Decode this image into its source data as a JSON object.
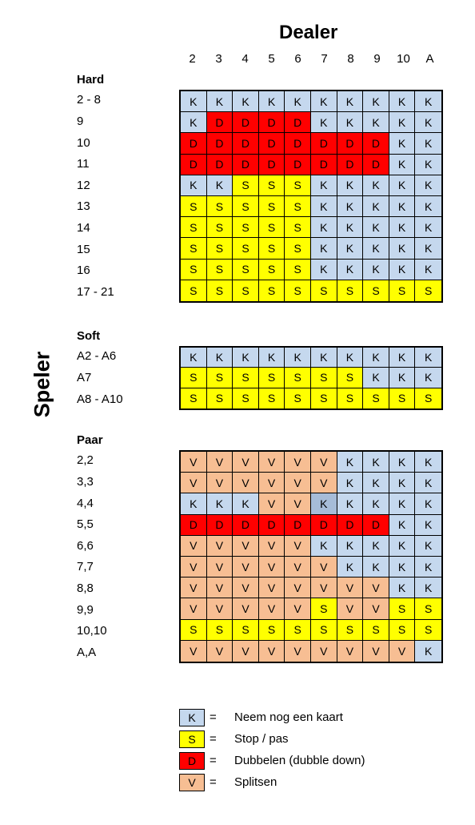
{
  "dealer": {
    "title": "Dealer",
    "columns": [
      "2",
      "3",
      "4",
      "5",
      "6",
      "7",
      "8",
      "9",
      "10",
      "A"
    ]
  },
  "player_label": "Speler",
  "colors": {
    "K": "#c5d8ee",
    "S": "#ffff00",
    "D": "#ff0000",
    "V": "#f7be93",
    "K_dark": "#a6bcd8"
  },
  "sections": [
    {
      "title": "Hard",
      "rows": [
        {
          "label": "2 - 8",
          "cells": [
            "K",
            "K",
            "K",
            "K",
            "K",
            "K",
            "K",
            "K",
            "K",
            "K"
          ]
        },
        {
          "label": "9",
          "cells": [
            "K",
            "D",
            "D",
            "D",
            "D",
            "K",
            "K",
            "K",
            "K",
            "K"
          ]
        },
        {
          "label": "10",
          "cells": [
            "D",
            "D",
            "D",
            "D",
            "D",
            "D",
            "D",
            "D",
            "K",
            "K"
          ]
        },
        {
          "label": "11",
          "cells": [
            "D",
            "D",
            "D",
            "D",
            "D",
            "D",
            "D",
            "D",
            "K",
            "K"
          ]
        },
        {
          "label": "12",
          "cells": [
            "K",
            "K",
            "S",
            "S",
            "S",
            "K",
            "K",
            "K",
            "K",
            "K"
          ]
        },
        {
          "label": "13",
          "cells": [
            "S",
            "S",
            "S",
            "S",
            "S",
            "K",
            "K",
            "K",
            "K",
            "K"
          ]
        },
        {
          "label": "14",
          "cells": [
            "S",
            "S",
            "S",
            "S",
            "S",
            "K",
            "K",
            "K",
            "K",
            "K"
          ]
        },
        {
          "label": "15",
          "cells": [
            "S",
            "S",
            "S",
            "S",
            "S",
            "K",
            "K",
            "K",
            "K",
            "K"
          ]
        },
        {
          "label": "16",
          "cells": [
            "S",
            "S",
            "S",
            "S",
            "S",
            "K",
            "K",
            "K",
            "K",
            "K"
          ]
        },
        {
          "label": "17 - 21",
          "cells": [
            "S",
            "S",
            "S",
            "S",
            "S",
            "S",
            "S",
            "S",
            "S",
            "S"
          ]
        }
      ]
    },
    {
      "title": "Soft",
      "rows": [
        {
          "label": "A2 - A6",
          "cells": [
            "K",
            "K",
            "K",
            "K",
            "K",
            "K",
            "K",
            "K",
            "K",
            "K"
          ]
        },
        {
          "label": "A7",
          "cells": [
            "S",
            "S",
            "S",
            "S",
            "S",
            "S",
            "S",
            "K",
            "K",
            "K"
          ]
        },
        {
          "label": "A8 - A10",
          "cells": [
            "S",
            "S",
            "S",
            "S",
            "S",
            "S",
            "S",
            "S",
            "S",
            "S"
          ]
        }
      ]
    },
    {
      "title": "Paar",
      "rows": [
        {
          "label": "2,2",
          "cells": [
            "V",
            "V",
            "V",
            "V",
            "V",
            "V",
            "K",
            "K",
            "K",
            "K"
          ]
        },
        {
          "label": "3,3",
          "cells": [
            "V",
            "V",
            "V",
            "V",
            "V",
            "V",
            "K",
            "K",
            "K",
            "K"
          ]
        },
        {
          "label": "4,4",
          "cells": [
            "K",
            "K",
            "K",
            "V",
            "V",
            "K*",
            "K",
            "K",
            "K",
            "K"
          ]
        },
        {
          "label": "5,5",
          "cells": [
            "D",
            "D",
            "D",
            "D",
            "D",
            "D",
            "D",
            "D",
            "K",
            "K"
          ]
        },
        {
          "label": "6,6",
          "cells": [
            "V",
            "V",
            "V",
            "V",
            "V",
            "K",
            "K",
            "K",
            "K",
            "K"
          ]
        },
        {
          "label": "7,7",
          "cells": [
            "V",
            "V",
            "V",
            "V",
            "V",
            "V",
            "K",
            "K",
            "K",
            "K"
          ]
        },
        {
          "label": "8,8",
          "cells": [
            "V",
            "V",
            "V",
            "V",
            "V",
            "V",
            "V",
            "V",
            "K",
            "K"
          ]
        },
        {
          "label": "9,9",
          "cells": [
            "V",
            "V",
            "V",
            "V",
            "V",
            "S",
            "V",
            "V",
            "S",
            "S"
          ]
        },
        {
          "label": "10,10",
          "cells": [
            "S",
            "S",
            "S",
            "S",
            "S",
            "S",
            "S",
            "S",
            "S",
            "S"
          ]
        },
        {
          "label": "A,A",
          "cells": [
            "V",
            "V",
            "V",
            "V",
            "V",
            "V",
            "V",
            "V",
            "V",
            "K"
          ]
        }
      ]
    }
  ],
  "legend": [
    {
      "code": "K",
      "eq": "=",
      "text": "Neem nog een kaart"
    },
    {
      "code": "S",
      "eq": "=",
      "text": "Stop / pas"
    },
    {
      "code": "D",
      "eq": "=",
      "text": "Dubbelen (dubble down)"
    },
    {
      "code": "V",
      "eq": "=",
      "text": "Splitsen"
    }
  ]
}
